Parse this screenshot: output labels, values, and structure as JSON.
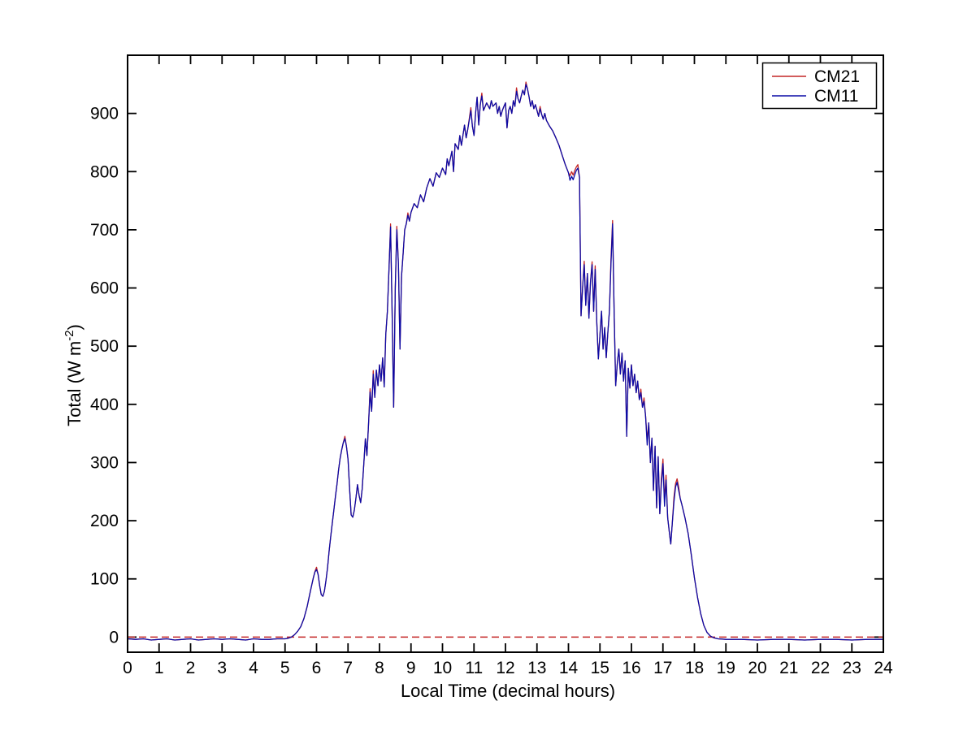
{
  "figure": {
    "background": "#ffffff",
    "axes_color": "#000000"
  },
  "chart_data": {
    "type": "line",
    "title": "",
    "xlabel": "Local Time (decimal hours)",
    "ylabel": "Total (W m-2)",
    "ylabel_parts": [
      "Total (W m",
      "-2",
      ")"
    ],
    "xlim": [
      0,
      24
    ],
    "ylim": [
      -26,
      1000
    ],
    "xticks": [
      0,
      1,
      2,
      3,
      4,
      5,
      6,
      7,
      8,
      9,
      10,
      11,
      12,
      13,
      14,
      15,
      16,
      17,
      18,
      19,
      20,
      21,
      22,
      23,
      24
    ],
    "yticks": [
      0,
      100,
      200,
      300,
      400,
      500,
      600,
      700,
      800,
      900
    ],
    "grid": false,
    "legend": {
      "position": "top-right",
      "entries": [
        "CM21",
        "CM11"
      ]
    },
    "zero_line": {
      "value": 0,
      "color": "#c42626",
      "style": "dashed"
    },
    "x": [
      0,
      0.25,
      0.5,
      0.75,
      1,
      1.25,
      1.5,
      1.75,
      2,
      2.25,
      2.5,
      2.75,
      3,
      3.25,
      3.5,
      3.75,
      4,
      4.25,
      4.5,
      4.75,
      5,
      5.1,
      5.2,
      5.3,
      5.4,
      5.5,
      5.6,
      5.7,
      5.8,
      5.9,
      5.95,
      6,
      6.05,
      6.1,
      6.15,
      6.2,
      6.25,
      6.3,
      6.35,
      6.4,
      6.45,
      6.5,
      6.55,
      6.6,
      6.65,
      6.7,
      6.75,
      6.8,
      6.85,
      6.9,
      6.95,
      7,
      7.05,
      7.1,
      7.15,
      7.2,
      7.25,
      7.3,
      7.35,
      7.4,
      7.45,
      7.5,
      7.55,
      7.6,
      7.65,
      7.7,
      7.75,
      7.8,
      7.85,
      7.9,
      7.95,
      8,
      8.05,
      8.1,
      8.15,
      8.2,
      8.25,
      8.3,
      8.35,
      8.4,
      8.45,
      8.5,
      8.55,
      8.6,
      8.65,
      8.7,
      8.75,
      8.8,
      8.85,
      8.9,
      8.95,
      9,
      9.1,
      9.2,
      9.3,
      9.4,
      9.5,
      9.6,
      9.7,
      9.8,
      9.9,
      10,
      10.1,
      10.15,
      10.2,
      10.3,
      10.35,
      10.4,
      10.5,
      10.55,
      10.6,
      10.7,
      10.75,
      10.8,
      10.9,
      10.95,
      11,
      11.05,
      11.1,
      11.15,
      11.2,
      11.25,
      11.3,
      11.4,
      11.5,
      11.55,
      11.6,
      11.7,
      11.75,
      11.8,
      11.85,
      11.9,
      11.95,
      12,
      12.05,
      12.1,
      12.15,
      12.2,
      12.25,
      12.3,
      12.35,
      12.4,
      12.45,
      12.5,
      12.55,
      12.6,
      12.65,
      12.7,
      12.75,
      12.8,
      12.85,
      12.9,
      12.95,
      13,
      13.05,
      13.1,
      13.15,
      13.2,
      13.25,
      13.3,
      13.4,
      13.5,
      13.6,
      13.7,
      13.8,
      13.9,
      14,
      14.05,
      14.1,
      14.15,
      14.2,
      14.25,
      14.3,
      14.35,
      14.4,
      14.45,
      14.5,
      14.55,
      14.6,
      14.65,
      14.7,
      14.75,
      14.8,
      14.85,
      14.9,
      14.95,
      15,
      15.05,
      15.1,
      15.15,
      15.2,
      15.25,
      15.3,
      15.35,
      15.4,
      15.45,
      15.5,
      15.55,
      15.6,
      15.65,
      15.7,
      15.75,
      15.8,
      15.85,
      15.9,
      15.95,
      16,
      16.05,
      16.1,
      16.15,
      16.2,
      16.25,
      16.3,
      16.35,
      16.4,
      16.45,
      16.5,
      16.55,
      16.6,
      16.65,
      16.7,
      16.75,
      16.8,
      16.85,
      16.9,
      16.95,
      17,
      17.05,
      17.1,
      17.15,
      17.2,
      17.25,
      17.3,
      17.35,
      17.4,
      17.45,
      17.5,
      17.55,
      17.6,
      17.7,
      17.8,
      17.9,
      18,
      18.1,
      18.2,
      18.3,
      18.4,
      18.5,
      18.6,
      18.75,
      19,
      19.5,
      20,
      20.5,
      21,
      21.5,
      22,
      22.5,
      23,
      23.5,
      24
    ],
    "series": [
      {
        "name": "CM21",
        "color": "#c42626",
        "style": "solid",
        "values": [
          -3,
          -4,
          -3,
          -5,
          -4,
          -3,
          -5,
          -4,
          -3,
          -5,
          -4,
          -3,
          -4,
          -3,
          -4,
          -5,
          -3,
          -4,
          -4,
          -3,
          -3,
          -2,
          0,
          4,
          10,
          18,
          32,
          52,
          78,
          102,
          113,
          120,
          108,
          88,
          73,
          70,
          79,
          97,
          120,
          148,
          172,
          196,
          218,
          242,
          263,
          287,
          308,
          322,
          334,
          345,
          328,
          305,
          255,
          210,
          206,
          218,
          238,
          262,
          244,
          231,
          255,
          296,
          341,
          312,
          363,
          427,
          388,
          458,
          412,
          459,
          432,
          468,
          440,
          480,
          430,
          520,
          560,
          630,
          710,
          560,
          395,
          600,
          706,
          640,
          495,
          620,
          660,
          700,
          710,
          729,
          715,
          730,
          745,
          738,
          760,
          748,
          772,
          788,
          775,
          798,
          790,
          806,
          795,
          822,
          810,
          835,
          800,
          848,
          838,
          862,
          845,
          880,
          858,
          872,
          910,
          878,
          862,
          900,
          928,
          880,
          915,
          935,
          905,
          918,
          908,
          922,
          912,
          918,
          900,
          912,
          895,
          905,
          912,
          918,
          875,
          905,
          912,
          900,
          922,
          912,
          944,
          925,
          918,
          930,
          940,
          932,
          954,
          942,
          928,
          912,
          922,
          908,
          915,
          905,
          895,
          912,
          898,
          890,
          900,
          888,
          878,
          870,
          858,
          845,
          828,
          812,
          798,
          793,
          800,
          794,
          802,
          808,
          812,
          790,
          552,
          600,
          646,
          570,
          625,
          548,
          610,
          645,
          560,
          638,
          540,
          478,
          520,
          560,
          495,
          532,
          480,
          522,
          560,
          648,
          716,
          560,
          432,
          470,
          495,
          452,
          488,
          440,
          475,
          345,
          462,
          428,
          468,
          432,
          452,
          420,
          440,
          408,
          426,
          395,
          411,
          380,
          338,
          368,
          300,
          342,
          252,
          328,
          222,
          310,
          212,
          272,
          306,
          235,
          278,
          205,
          182,
          160,
          198,
          240,
          264,
          272,
          258,
          238,
          228,
          205,
          178,
          142,
          102,
          68,
          40,
          20,
          8,
          2,
          -1,
          -3,
          -4,
          -4,
          -5,
          -4,
          -4,
          -5,
          -4,
          -4,
          -5,
          -4,
          -4
        ]
      },
      {
        "name": "CM11",
        "color": "#0b0ba6",
        "style": "solid",
        "values": [
          -3,
          -4,
          -3,
          -5,
          -4,
          -3,
          -5,
          -4,
          -3,
          -5,
          -4,
          -3,
          -4,
          -3,
          -4,
          -5,
          -3,
          -4,
          -4,
          -3,
          -3,
          -2,
          0,
          4,
          10,
          18,
          32,
          52,
          78,
          102,
          112,
          116,
          108,
          88,
          73,
          70,
          79,
          97,
          120,
          148,
          172,
          196,
          218,
          242,
          263,
          287,
          308,
          322,
          334,
          341,
          328,
          305,
          255,
          210,
          206,
          218,
          238,
          262,
          244,
          231,
          255,
          296,
          341,
          312,
          363,
          421,
          388,
          452,
          412,
          459,
          432,
          468,
          440,
          480,
          430,
          520,
          560,
          630,
          705,
          560,
          395,
          600,
          700,
          640,
          495,
          620,
          660,
          700,
          710,
          725,
          715,
          730,
          745,
          738,
          760,
          748,
          772,
          788,
          775,
          798,
          790,
          806,
          795,
          822,
          810,
          835,
          800,
          848,
          838,
          862,
          845,
          880,
          858,
          872,
          905,
          878,
          862,
          900,
          928,
          880,
          915,
          930,
          905,
          918,
          908,
          922,
          912,
          918,
          900,
          912,
          895,
          905,
          912,
          918,
          875,
          905,
          912,
          900,
          922,
          912,
          938,
          925,
          918,
          930,
          940,
          932,
          950,
          942,
          928,
          912,
          922,
          908,
          915,
          905,
          895,
          908,
          898,
          890,
          900,
          888,
          878,
          870,
          858,
          845,
          828,
          812,
          798,
          785,
          792,
          786,
          795,
          802,
          806,
          790,
          552,
          600,
          640,
          570,
          625,
          548,
          610,
          640,
          560,
          632,
          540,
          478,
          520,
          560,
          495,
          532,
          480,
          522,
          560,
          640,
          710,
          560,
          432,
          470,
          495,
          452,
          488,
          440,
          475,
          345,
          462,
          428,
          468,
          432,
          452,
          420,
          440,
          408,
          420,
          395,
          405,
          380,
          330,
          368,
          300,
          342,
          252,
          328,
          222,
          310,
          212,
          262,
          298,
          225,
          270,
          205,
          182,
          160,
          198,
          232,
          258,
          266,
          252,
          238,
          228,
          205,
          178,
          142,
          102,
          68,
          40,
          20,
          8,
          2,
          -1,
          -3,
          -4,
          -4,
          -5,
          -4,
          -4,
          -5,
          -4,
          -4,
          -5,
          -4,
          -4
        ]
      }
    ]
  }
}
